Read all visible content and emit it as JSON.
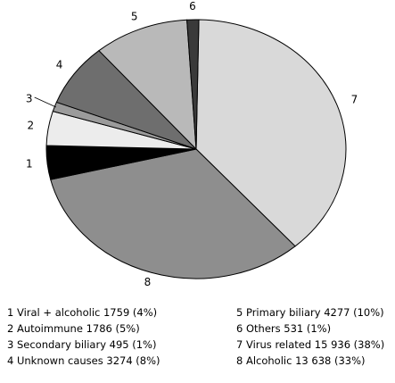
{
  "chart_data": {
    "type": "pie",
    "title": "",
    "slices": [
      {
        "number": "1",
        "label": "Viral + alcoholic",
        "count": 1759,
        "count_text": "1759",
        "percent": 4,
        "color": "#000000"
      },
      {
        "number": "2",
        "label": "Autoimmune",
        "count": 1786,
        "count_text": "1786",
        "percent": 5,
        "color": "#ececec"
      },
      {
        "number": "3",
        "label": "Secondary biliary",
        "count": 495,
        "count_text": "495",
        "percent": 1,
        "color": "#9b9b9b"
      },
      {
        "number": "4",
        "label": "Unknown causes",
        "count": 3274,
        "count_text": "3274",
        "percent": 8,
        "color": "#6e6e6e"
      },
      {
        "number": "5",
        "label": "Primary biliary",
        "count": 4277,
        "count_text": "4277",
        "percent": 10,
        "color": "#b9b9b9"
      },
      {
        "number": "6",
        "label": "Others",
        "count": 531,
        "count_text": "531",
        "percent": 1,
        "color": "#3a3a3a"
      },
      {
        "number": "7",
        "label": "Virus related",
        "count": 15936,
        "count_text": "15 936",
        "percent": 38,
        "color": "#d9d9d9"
      },
      {
        "number": "8",
        "label": "Alcoholic",
        "count": 13638,
        "count_text": "13 638",
        "percent": 33,
        "color": "#8e8e8e"
      }
    ]
  },
  "legend": {
    "left": [
      "1 Viral + alcoholic 1759 (4%)",
      "2 Autoimmune 1786 (5%)",
      "3 Secondary biliary 495 (1%)",
      "4 Unknown causes 3274 (8%)"
    ],
    "right": [
      "5 Primary biliary 4277 (10%)",
      "6 Others 531 (1%)",
      "7 Virus related 15 936 (38%)",
      "8 Alcoholic 13 638 (33%)"
    ]
  }
}
